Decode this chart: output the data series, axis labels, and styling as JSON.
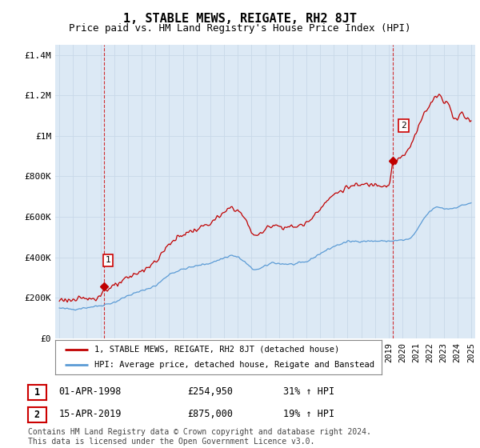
{
  "title": "1, STABLE MEWS, REIGATE, RH2 8JT",
  "subtitle": "Price paid vs. HM Land Registry's House Price Index (HPI)",
  "title_fontsize": 11,
  "subtitle_fontsize": 9,
  "ylabel_ticks": [
    "£0",
    "£200K",
    "£400K",
    "£600K",
    "£800K",
    "£1M",
    "£1.2M",
    "£1.4M"
  ],
  "ytick_values": [
    0,
    200000,
    400000,
    600000,
    800000,
    1000000,
    1200000,
    1400000
  ],
  "ylim": [
    0,
    1450000
  ],
  "xlim_start": 1994.7,
  "xlim_end": 2025.3,
  "hpi_color": "#5b9bd5",
  "price_color": "#c00000",
  "grid_color": "#c8d8e8",
  "bg_fill_color": "#dce9f5",
  "background_color": "#ffffff",
  "legend_line1": "1, STABLE MEWS, REIGATE, RH2 8JT (detached house)",
  "legend_line2": "HPI: Average price, detached house, Reigate and Banstead",
  "sale1_date": "01-APR-1998",
  "sale1_price": "£254,950",
  "sale1_hpi": "31% ↑ HPI",
  "sale1_x": 1998.25,
  "sale1_y": 254950,
  "sale2_date": "15-APR-2019",
  "sale2_price": "£875,000",
  "sale2_hpi": "19% ↑ HPI",
  "sale2_x": 2019.29,
  "sale2_y": 875000,
  "footer": "Contains HM Land Registry data © Crown copyright and database right 2024.\nThis data is licensed under the Open Government Licence v3.0.",
  "footer_fontsize": 7,
  "dashed_line1_x": 1998.25,
  "dashed_line2_x": 2019.29
}
